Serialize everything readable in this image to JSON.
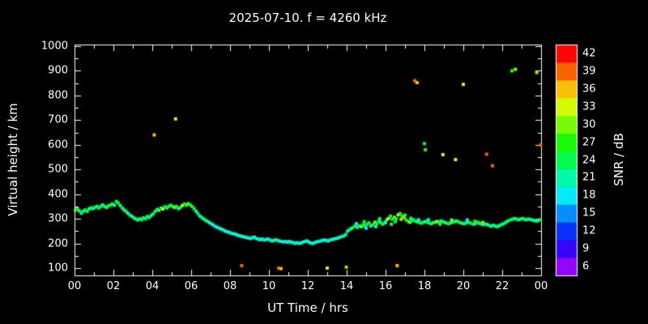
{
  "figure": {
    "background": "#000000",
    "foreground": "#ffffff"
  },
  "chart_data": {
    "type": "scatter",
    "title": "2025-07-10. f = 4260 kHz",
    "xlabel": "UT Time / hrs",
    "ylabel": "Virtual height / km",
    "xlim": [
      0,
      24
    ],
    "ylim": [
      100,
      1000
    ],
    "grid": false,
    "xticks": {
      "values": [
        0,
        2,
        4,
        6,
        8,
        10,
        12,
        14,
        16,
        18,
        20,
        22,
        24
      ],
      "labels": [
        "00",
        "02",
        "04",
        "06",
        "08",
        "10",
        "12",
        "14",
        "16",
        "18",
        "20",
        "22",
        "00"
      ]
    },
    "yticks": [
      100,
      200,
      300,
      400,
      500,
      600,
      700,
      800,
      900,
      1000
    ],
    "colorbar": {
      "label": "SNR / dB",
      "min": 6,
      "max": 42,
      "ticks": [
        6,
        9,
        12,
        15,
        18,
        21,
        24,
        27,
        30,
        33,
        36,
        39,
        42
      ],
      "top_color": "#ff0000",
      "bottom_color": "#8000ff"
    },
    "point_format": [
      "time_hr",
      "virtual_height_km",
      "snr_db"
    ],
    "points": [
      [
        0.05,
        335,
        30
      ],
      [
        0.15,
        340,
        24
      ],
      [
        0.25,
        332,
        21
      ],
      [
        0.35,
        322,
        24
      ],
      [
        0.45,
        330,
        21
      ],
      [
        0.55,
        336,
        24
      ],
      [
        0.65,
        330,
        27
      ],
      [
        0.75,
        340,
        21
      ],
      [
        0.85,
        345,
        24
      ],
      [
        0.95,
        341,
        21
      ],
      [
        1.05,
        346,
        24
      ],
      [
        1.15,
        350,
        21
      ],
      [
        1.25,
        344,
        27
      ],
      [
        1.35,
        350,
        24
      ],
      [
        1.45,
        356,
        21
      ],
      [
        1.55,
        350,
        24
      ],
      [
        1.65,
        346,
        21
      ],
      [
        1.75,
        352,
        24
      ],
      [
        1.85,
        356,
        27
      ],
      [
        1.95,
        360,
        24
      ],
      [
        2.05,
        355,
        21
      ],
      [
        2.15,
        370,
        24
      ],
      [
        2.25,
        364,
        27
      ],
      [
        2.35,
        354,
        21
      ],
      [
        2.45,
        344,
        24
      ],
      [
        2.55,
        336,
        21
      ],
      [
        2.65,
        330,
        24
      ],
      [
        2.75,
        322,
        21
      ],
      [
        2.85,
        315,
        24
      ],
      [
        2.95,
        310,
        21
      ],
      [
        3.05,
        304,
        24
      ],
      [
        3.15,
        299,
        21
      ],
      [
        3.25,
        295,
        27
      ],
      [
        3.35,
        300,
        21
      ],
      [
        3.45,
        296,
        24
      ],
      [
        3.55,
        304,
        21
      ],
      [
        3.65,
        300,
        24
      ],
      [
        3.75,
        309,
        21
      ],
      [
        3.85,
        305,
        24
      ],
      [
        3.95,
        314,
        21
      ],
      [
        4.05,
        320,
        24
      ],
      [
        4.15,
        330,
        27
      ],
      [
        4.25,
        338,
        24
      ],
      [
        4.35,
        334,
        21
      ],
      [
        4.45,
        344,
        24
      ],
      [
        4.55,
        340,
        33
      ],
      [
        4.65,
        349,
        24
      ],
      [
        4.75,
        344,
        21
      ],
      [
        4.85,
        350,
        24
      ],
      [
        4.95,
        355,
        27
      ],
      [
        5.05,
        350,
        24
      ],
      [
        5.15,
        346,
        30
      ],
      [
        5.25,
        350,
        24
      ],
      [
        5.35,
        341,
        21
      ],
      [
        5.45,
        346,
        24
      ],
      [
        5.55,
        354,
        33
      ],
      [
        5.65,
        360,
        27
      ],
      [
        5.75,
        355,
        24
      ],
      [
        5.85,
        361,
        30
      ],
      [
        5.95,
        356,
        24
      ],
      [
        6.05,
        350,
        27
      ],
      [
        6.15,
        341,
        24
      ],
      [
        6.25,
        331,
        21
      ],
      [
        6.35,
        321,
        24
      ],
      [
        6.45,
        311,
        21
      ],
      [
        6.55,
        305,
        24
      ],
      [
        6.65,
        299,
        21
      ],
      [
        6.75,
        294,
        24
      ],
      [
        6.85,
        289,
        21
      ],
      [
        6.95,
        284,
        18
      ],
      [
        7.05,
        279,
        21
      ],
      [
        7.15,
        274,
        18
      ],
      [
        7.25,
        269,
        21
      ],
      [
        7.35,
        265,
        18
      ],
      [
        7.45,
        262,
        21
      ],
      [
        7.55,
        258,
        18
      ],
      [
        7.65,
        255,
        21
      ],
      [
        7.75,
        250,
        18
      ],
      [
        7.85,
        248,
        21
      ],
      [
        7.95,
        245,
        18
      ],
      [
        8.05,
        242,
        21
      ],
      [
        8.15,
        240,
        18
      ],
      [
        8.25,
        238,
        21
      ],
      [
        8.35,
        235,
        18
      ],
      [
        8.45,
        232,
        21
      ],
      [
        8.55,
        230,
        18
      ],
      [
        8.65,
        228,
        21
      ],
      [
        8.75,
        226,
        18
      ],
      [
        8.85,
        224,
        21
      ],
      [
        8.95,
        222,
        18
      ],
      [
        9.05,
        220,
        21
      ],
      [
        9.15,
        223,
        18
      ],
      [
        9.25,
        226,
        21
      ],
      [
        9.35,
        220,
        18
      ],
      [
        9.45,
        218,
        21
      ],
      [
        9.55,
        215,
        18
      ],
      [
        9.65,
        218,
        21
      ],
      [
        9.75,
        214,
        18
      ],
      [
        9.85,
        216,
        21
      ],
      [
        9.95,
        218,
        18
      ],
      [
        10.05,
        214,
        21
      ],
      [
        10.15,
        210,
        18
      ],
      [
        10.25,
        212,
        21
      ],
      [
        10.35,
        215,
        18
      ],
      [
        10.45,
        212,
        24
      ],
      [
        10.55,
        210,
        18
      ],
      [
        10.65,
        208,
        21
      ],
      [
        10.75,
        206,
        18
      ],
      [
        10.85,
        208,
        21
      ],
      [
        10.95,
        205,
        18
      ],
      [
        11.05,
        208,
        21
      ],
      [
        11.15,
        205,
        18
      ],
      [
        11.25,
        203,
        21
      ],
      [
        11.35,
        200,
        18
      ],
      [
        11.45,
        203,
        21
      ],
      [
        11.55,
        200,
        18
      ],
      [
        11.65,
        202,
        21
      ],
      [
        11.75,
        205,
        18
      ],
      [
        11.85,
        208,
        21
      ],
      [
        11.95,
        210,
        18
      ],
      [
        12.05,
        206,
        21
      ],
      [
        12.15,
        202,
        18
      ],
      [
        12.25,
        200,
        21
      ],
      [
        12.35,
        203,
        18
      ],
      [
        12.45,
        206,
        21
      ],
      [
        12.55,
        208,
        18
      ],
      [
        12.65,
        210,
        21
      ],
      [
        12.75,
        212,
        18
      ],
      [
        12.85,
        214,
        21
      ],
      [
        12.95,
        212,
        18
      ],
      [
        13.05,
        210,
        21
      ],
      [
        13.15,
        214,
        18
      ],
      [
        13.25,
        216,
        21
      ],
      [
        13.35,
        218,
        18
      ],
      [
        13.45,
        220,
        21
      ],
      [
        13.55,
        222,
        18
      ],
      [
        13.65,
        225,
        21
      ],
      [
        13.75,
        228,
        24
      ],
      [
        13.85,
        230,
        21
      ],
      [
        13.95,
        236,
        18
      ],
      [
        14.05,
        250,
        21
      ],
      [
        14.15,
        256,
        24
      ],
      [
        14.25,
        261,
        21
      ],
      [
        14.35,
        266,
        27
      ],
      [
        14.45,
        271,
        24
      ],
      [
        14.55,
        265,
        21
      ],
      [
        14.65,
        272,
        24
      ],
      [
        14.75,
        268,
        30
      ],
      [
        14.85,
        276,
        24
      ],
      [
        14.95,
        270,
        21
      ],
      [
        15.05,
        278,
        24
      ],
      [
        15.15,
        283,
        27
      ],
      [
        15.25,
        271,
        21
      ],
      [
        15.35,
        276,
        24
      ],
      [
        15.45,
        286,
        30
      ],
      [
        15.55,
        280,
        24
      ],
      [
        15.65,
        291,
        27
      ],
      [
        15.75,
        285,
        21
      ],
      [
        15.85,
        278,
        24
      ],
      [
        15.95,
        283,
        27
      ],
      [
        16.05,
        295,
        24
      ],
      [
        16.15,
        301,
        33
      ],
      [
        16.25,
        311,
        27
      ],
      [
        16.35,
        298,
        24
      ],
      [
        16.45,
        306,
        30
      ],
      [
        16.55,
        300,
        24
      ],
      [
        16.65,
        316,
        33
      ],
      [
        16.75,
        321,
        27
      ],
      [
        16.85,
        311,
        24
      ],
      [
        16.95,
        305,
        36
      ],
      [
        17.05,
        296,
        27
      ],
      [
        17.15,
        290,
        24
      ],
      [
        17.25,
        286,
        30
      ],
      [
        17.35,
        291,
        24
      ],
      [
        17.45,
        296,
        27
      ],
      [
        17.55,
        290,
        24
      ],
      [
        17.65,
        288,
        21
      ],
      [
        17.75,
        285,
        24
      ],
      [
        17.85,
        282,
        27
      ],
      [
        17.95,
        286,
        24
      ],
      [
        18.05,
        289,
        21
      ],
      [
        18.15,
        286,
        24
      ],
      [
        18.25,
        283,
        27
      ],
      [
        18.35,
        280,
        24
      ],
      [
        18.45,
        284,
        21
      ],
      [
        18.55,
        286,
        24
      ],
      [
        18.65,
        289,
        33
      ],
      [
        18.75,
        286,
        24
      ],
      [
        18.85,
        291,
        21
      ],
      [
        18.95,
        288,
        24
      ],
      [
        19.05,
        285,
        21
      ],
      [
        19.15,
        282,
        24
      ],
      [
        19.25,
        280,
        27
      ],
      [
        19.35,
        284,
        24
      ],
      [
        19.45,
        286,
        21
      ],
      [
        19.55,
        289,
        24
      ],
      [
        19.65,
        291,
        21
      ],
      [
        19.75,
        288,
        24
      ],
      [
        19.85,
        284,
        27
      ],
      [
        19.95,
        282,
        24
      ],
      [
        20.05,
        280,
        21
      ],
      [
        20.15,
        284,
        24
      ],
      [
        20.25,
        286,
        21
      ],
      [
        20.35,
        283,
        24
      ],
      [
        20.45,
        280,
        27
      ],
      [
        20.55,
        278,
        24
      ],
      [
        20.65,
        282,
        21
      ],
      [
        20.75,
        286,
        24
      ],
      [
        20.85,
        281,
        21
      ],
      [
        20.95,
        278,
        24
      ],
      [
        21.05,
        276,
        21
      ],
      [
        21.15,
        279,
        24
      ],
      [
        21.25,
        276,
        21
      ],
      [
        21.35,
        272,
        24
      ],
      [
        21.45,
        270,
        21
      ],
      [
        21.55,
        274,
        24
      ],
      [
        21.65,
        270,
        21
      ],
      [
        21.75,
        268,
        24
      ],
      [
        21.85,
        272,
        21
      ],
      [
        21.95,
        276,
        24
      ],
      [
        22.05,
        279,
        21
      ],
      [
        22.15,
        283,
        24
      ],
      [
        22.25,
        289,
        21
      ],
      [
        22.35,
        293,
        24
      ],
      [
        22.45,
        296,
        27
      ],
      [
        22.55,
        299,
        24
      ],
      [
        22.65,
        301,
        21
      ],
      [
        22.75,
        298,
        24
      ],
      [
        22.85,
        296,
        21
      ],
      [
        22.95,
        299,
        24
      ],
      [
        23.05,
        301,
        21
      ],
      [
        23.15,
        298,
        24
      ],
      [
        23.25,
        296,
        21
      ],
      [
        23.35,
        299,
        24
      ],
      [
        23.45,
        297,
        21
      ],
      [
        23.55,
        295,
        24
      ],
      [
        23.65,
        293,
        21
      ],
      [
        23.75,
        291,
        24
      ],
      [
        23.85,
        293,
        21
      ],
      [
        23.95,
        296,
        24
      ],
      [
        14.5,
        280,
        18
      ],
      [
        14.9,
        288,
        27
      ],
      [
        15.0,
        262,
        18
      ],
      [
        15.5,
        268,
        21
      ],
      [
        15.7,
        300,
        24
      ],
      [
        16.0,
        285,
        21
      ],
      [
        16.3,
        278,
        21
      ],
      [
        16.5,
        288,
        27
      ],
      [
        16.8,
        298,
        30
      ],
      [
        17.0,
        315,
        24
      ],
      [
        17.3,
        302,
        21
      ],
      [
        17.7,
        296,
        18
      ],
      [
        18.2,
        296,
        18
      ],
      [
        18.8,
        278,
        27
      ],
      [
        19.4,
        295,
        30
      ],
      [
        20.2,
        295,
        18
      ],
      [
        20.6,
        290,
        27
      ],
      [
        21.0,
        285,
        30
      ],
      [
        4.1,
        640,
        36
      ],
      [
        5.2,
        705,
        33
      ],
      [
        8.6,
        110,
        39
      ],
      [
        10.5,
        100,
        39
      ],
      [
        10.62,
        98,
        36
      ],
      [
        13.0,
        100,
        33
      ],
      [
        13.98,
        104,
        30
      ],
      [
        16.6,
        110,
        36
      ],
      [
        17.5,
        860,
        39
      ],
      [
        17.62,
        852,
        36
      ],
      [
        18.0,
        605,
        24
      ],
      [
        18.05,
        580,
        27
      ],
      [
        18.95,
        560,
        33
      ],
      [
        19.6,
        540,
        33
      ],
      [
        20.0,
        845,
        33
      ],
      [
        21.2,
        562,
        39
      ],
      [
        21.5,
        515,
        39
      ],
      [
        22.5,
        900,
        27
      ],
      [
        22.68,
        906,
        30
      ],
      [
        23.78,
        893,
        30
      ],
      [
        23.98,
        600,
        39
      ]
    ]
  }
}
